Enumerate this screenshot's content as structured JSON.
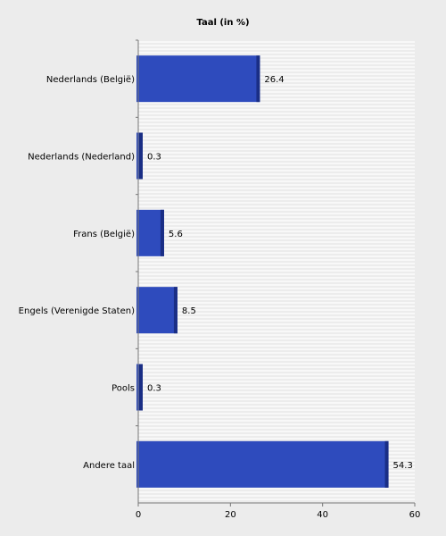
{
  "chart_data": {
    "type": "bar",
    "orientation": "horizontal",
    "title": "Taal (in %)",
    "categories": [
      "Nederlands (België)",
      "Nederlands (Nederland)",
      "Frans (België)",
      "Engels (Verenigde Staten)",
      "Pools",
      "Andere taal"
    ],
    "values": [
      26.4,
      0.3,
      5.6,
      8.5,
      0.3,
      54.3
    ],
    "value_labels": [
      "26.4",
      "0.3",
      "5.6",
      "8.5",
      "0.3",
      "54.3"
    ],
    "xlim": [
      0,
      60
    ],
    "xticks": [
      0,
      20,
      40,
      60
    ],
    "xtick_labels": [
      "0",
      "20",
      "40",
      "60"
    ],
    "grid": "horizontal-lines",
    "bar_color": "#2e4bbd",
    "bar_edge_color": "#1a2e85"
  }
}
